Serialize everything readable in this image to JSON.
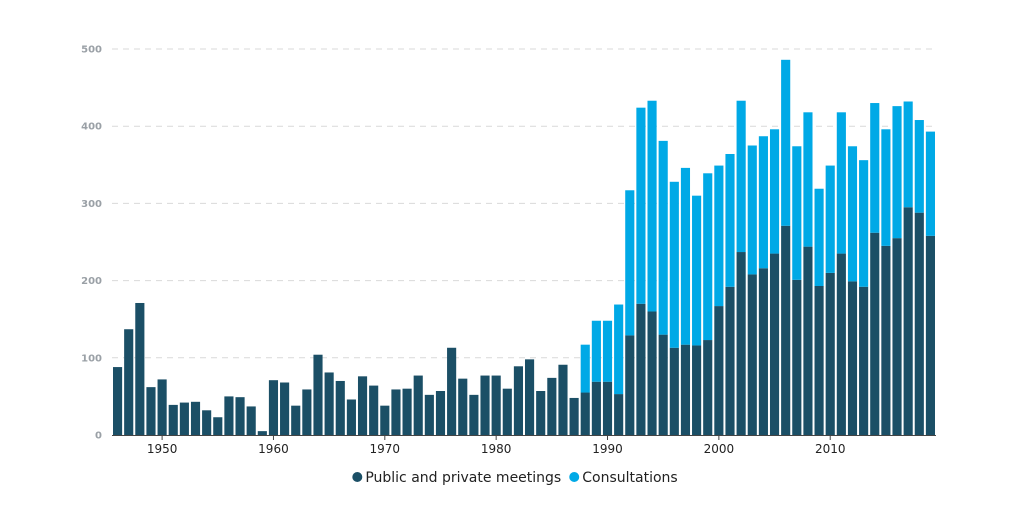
{
  "colors": {
    "meetings": "#1b4f66",
    "consultations": "#00a9e6",
    "grid": "#d9d9d9",
    "axis": "#444444"
  },
  "chart_data": {
    "type": "bar",
    "stacked": true,
    "x": [
      1946,
      1947,
      1948,
      1949,
      1950,
      1951,
      1952,
      1953,
      1954,
      1955,
      1956,
      1957,
      1958,
      1959,
      1960,
      1961,
      1962,
      1963,
      1964,
      1965,
      1966,
      1967,
      1968,
      1969,
      1970,
      1971,
      1972,
      1973,
      1974,
      1975,
      1976,
      1977,
      1978,
      1979,
      1980,
      1981,
      1982,
      1983,
      1984,
      1985,
      1986,
      1987,
      1988,
      1989,
      1990,
      1991,
      1992,
      1993,
      1994,
      1995,
      1996,
      1997,
      1998,
      1999,
      2000,
      2001,
      2002,
      2003,
      2004,
      2005,
      2006,
      2007,
      2008,
      2009,
      2010,
      2011,
      2012,
      2013,
      2014,
      2015,
      2016,
      2017,
      2018,
      2019
    ],
    "x_ticks": [
      "1950",
      "1960",
      "1970",
      "1980",
      "1990",
      "2000",
      "2010"
    ],
    "x_tick_values": [
      1950,
      1960,
      1970,
      1980,
      1990,
      2000,
      2010
    ],
    "y_ticks": [
      "0",
      "100",
      "200",
      "300",
      "400",
      "500"
    ],
    "y_tick_values": [
      0,
      100,
      200,
      300,
      400,
      500
    ],
    "ylim": [
      0,
      500
    ],
    "grid": true,
    "legend_position": "bottom-center",
    "series": [
      {
        "name": "Public and private meetings",
        "values": [
          88,
          137,
          171,
          62,
          72,
          39,
          42,
          43,
          32,
          23,
          50,
          49,
          37,
          5,
          71,
          68,
          38,
          59,
          104,
          81,
          70,
          46,
          76,
          64,
          38,
          59,
          60,
          77,
          52,
          57,
          113,
          73,
          52,
          77,
          77,
          60,
          89,
          98,
          57,
          74,
          91,
          48,
          55,
          69,
          69,
          53,
          129,
          170,
          160,
          130,
          113,
          117,
          116,
          123,
          167,
          192,
          237,
          208,
          216,
          235,
          271,
          201,
          244,
          193,
          210,
          235,
          199,
          192,
          262,
          245,
          255,
          295,
          288,
          258
        ]
      },
      {
        "name": "Consultations",
        "values": [
          0,
          0,
          0,
          0,
          0,
          0,
          0,
          0,
          0,
          0,
          0,
          0,
          0,
          0,
          0,
          0,
          0,
          0,
          0,
          0,
          0,
          0,
          0,
          0,
          0,
          0,
          0,
          0,
          0,
          0,
          0,
          0,
          0,
          0,
          0,
          0,
          0,
          0,
          0,
          0,
          0,
          0,
          62,
          79,
          79,
          116,
          188,
          254,
          273,
          251,
          215,
          229,
          194,
          216,
          182,
          172,
          196,
          167,
          171,
          161,
          215,
          173,
          174,
          126,
          139,
          183,
          175,
          164,
          168,
          151,
          171,
          137,
          120,
          135
        ]
      }
    ]
  }
}
